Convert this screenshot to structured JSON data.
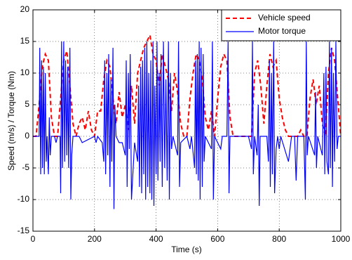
{
  "chart_data": {
    "type": "line",
    "xlabel": "Time (s)",
    "ylabel": "Speed (m/s) / Torque (Nm)",
    "xlim": [
      0,
      1000
    ],
    "ylim": [
      -15,
      20
    ],
    "xticks": [
      0,
      200,
      400,
      600,
      800,
      1000
    ],
    "yticks": [
      -15,
      -10,
      -5,
      0,
      5,
      10,
      15,
      20
    ],
    "grid": true,
    "legend": "upper right",
    "series": [
      {
        "name": "Vehicle speed",
        "color": "#ff0000",
        "dash": true,
        "x": [
          0,
          10,
          20,
          30,
          40,
          50,
          60,
          70,
          80,
          90,
          100,
          110,
          120,
          130,
          140,
          150,
          160,
          170,
          180,
          190,
          200,
          210,
          220,
          230,
          240,
          250,
          260,
          270,
          280,
          290,
          300,
          310,
          320,
          330,
          340,
          350,
          360,
          370,
          380,
          390,
          400,
          410,
          420,
          430,
          440,
          450,
          460,
          470,
          480,
          490,
          500,
          510,
          520,
          530,
          540,
          550,
          560,
          570,
          580,
          590,
          600,
          610,
          620,
          630,
          640,
          650,
          700,
          710,
          720,
          730,
          740,
          750,
          760,
          770,
          780,
          790,
          800,
          810,
          820,
          830,
          860,
          870,
          880,
          890,
          900,
          910,
          920,
          930,
          940,
          950,
          960,
          970,
          980,
          990,
          1000
        ],
        "values": [
          0,
          0,
          5,
          11,
          13,
          12,
          3,
          0,
          0,
          6,
          12,
          13.5,
          8,
          2,
          0,
          2,
          3,
          1,
          4,
          1,
          0,
          4,
          4,
          9,
          12,
          11,
          6,
          2,
          7,
          3,
          5,
          1,
          8,
          2,
          10,
          12,
          14,
          15,
          16,
          13,
          12,
          8,
          13,
          11,
          9,
          4,
          10,
          7,
          2,
          0,
          0,
          6,
          10,
          13,
          12,
          9,
          3,
          1,
          4,
          0,
          6,
          11,
          13,
          12,
          3,
          0,
          0,
          0,
          10,
          12,
          8,
          2,
          8,
          13,
          11,
          12,
          6,
          3,
          1,
          0,
          0,
          1,
          0,
          0,
          6,
          9,
          5,
          8,
          2,
          0,
          10,
          14,
          12,
          6,
          0
        ]
      },
      {
        "name": "Motor torque",
        "color": "#0000ff",
        "dash": false,
        "x": [
          0,
          20,
          22,
          25,
          28,
          31,
          34,
          37,
          40,
          43,
          46,
          50,
          53,
          56,
          60,
          70,
          75,
          80,
          88,
          90,
          93,
          96,
          100,
          103,
          106,
          110,
          113,
          116,
          120,
          123,
          126,
          130,
          150,
          160,
          200,
          205,
          210,
          225,
          230,
          233,
          236,
          240,
          243,
          246,
          250,
          253,
          256,
          260,
          263,
          266,
          270,
          280,
          290,
          300,
          303,
          306,
          310,
          313,
          316,
          320,
          330,
          340,
          343,
          346,
          350,
          353,
          356,
          360,
          363,
          366,
          370,
          373,
          376,
          380,
          383,
          386,
          390,
          393,
          396,
          400,
          403,
          406,
          410,
          413,
          416,
          420,
          424,
          428,
          432,
          436,
          440,
          443,
          447,
          450,
          455,
          470,
          473,
          476,
          480,
          500,
          510,
          515,
          525,
          528,
          531,
          534,
          537,
          540,
          543,
          546,
          550,
          553,
          556,
          560,
          580,
          583,
          586,
          590,
          610,
          615,
          630,
          634,
          637,
          640,
          700,
          705,
          710,
          713,
          716,
          720,
          728,
          732,
          735,
          738,
          760,
          765,
          768,
          771,
          775,
          778,
          782,
          785,
          790,
          795,
          800,
          805,
          830,
          840,
          850,
          855,
          860,
          880,
          885,
          888,
          891,
          895,
          915,
          918,
          921,
          925,
          940,
          945,
          948,
          952,
          955,
          960,
          963,
          966,
          970,
          973,
          976,
          980,
          984,
          988,
          992,
          1000
        ],
        "values": [
          0,
          0,
          14,
          -6,
          12,
          -5,
          11,
          -6,
          10,
          -4,
          0,
          -6,
          3,
          -3,
          0,
          0,
          -1,
          0,
          0,
          -9,
          15,
          -5,
          15,
          -4,
          12,
          -3,
          11,
          -5,
          14,
          -10,
          -3,
          0,
          0,
          -1,
          0,
          -1,
          0,
          -1,
          -4,
          12,
          -6,
          10,
          -3,
          13,
          -8,
          9,
          -4,
          14,
          -11.5,
          5,
          0,
          -1,
          -1,
          -3,
          12,
          -8,
          10,
          -2,
          13,
          -10,
          -1,
          -4,
          8,
          -8,
          11,
          -9,
          12,
          -6,
          14,
          -10,
          15,
          -8,
          10,
          -9,
          12,
          -10,
          15,
          -11,
          8,
          -6,
          15,
          -7,
          10,
          -4,
          13,
          -8,
          15,
          -5,
          9,
          -7,
          15,
          -10,
          10,
          -2,
          0,
          -3,
          15,
          -8,
          -1,
          0,
          -2,
          0,
          -5,
          12,
          -6,
          13,
          -7,
          15,
          -10,
          14,
          -8,
          13,
          -4,
          0,
          -2,
          15,
          -10,
          0,
          -2,
          0,
          0,
          15,
          -9,
          0,
          0,
          -1,
          -2,
          15,
          -6,
          0,
          -3,
          5,
          -11,
          0,
          0,
          -4,
          12,
          -8,
          10,
          -6,
          15,
          -9,
          -2,
          0,
          -2,
          0,
          -4,
          0,
          0,
          -7,
          0,
          0,
          -10,
          15,
          -3,
          0,
          -3,
          7,
          -5,
          0,
          -3,
          10,
          -6,
          11,
          -4,
          -6,
          15,
          -5,
          14,
          -8,
          10,
          -4,
          15,
          -2,
          0,
          0
        ]
      }
    ]
  }
}
